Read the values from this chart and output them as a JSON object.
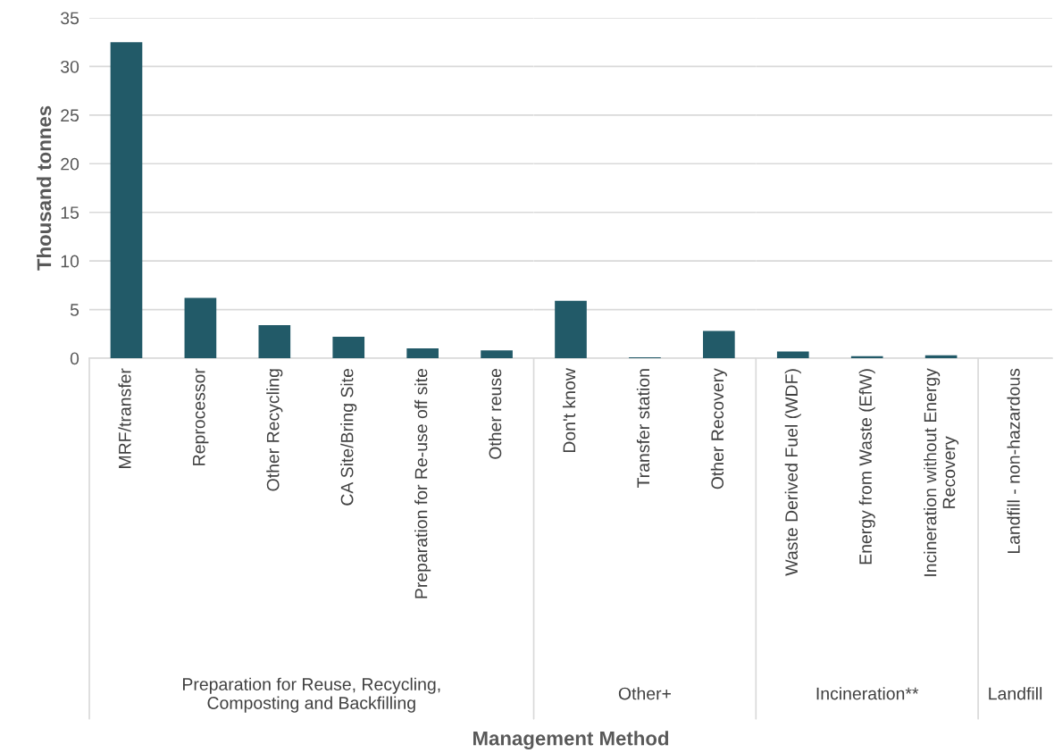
{
  "chart_data": [
    {
      "type": "bar",
      "xlabel": "Preparation for Reuse, Recycling,\nComposting and Backfilling",
      "ylabel": "Thousand tonnes",
      "categories": [
        "MRF/transfer",
        "Reprocessor",
        "Other Recycling",
        "CA Site/Bring Site",
        "Preparation for Re-use off site",
        "Other reuse"
      ],
      "values": [
        32.5,
        6.2,
        3.4,
        2.2,
        1.0,
        0.8
      ],
      "color": "#225a68",
      "ylim": [
        0,
        35
      ],
      "yticks": [
        0,
        5,
        10,
        15,
        20,
        25,
        30,
        35
      ],
      "grid": "y",
      "annotations": [
        "Management Method"
      ]
    },
    {
      "type": "bar",
      "xlabel": "Other+",
      "categories": [
        "Don't know",
        "Transfer station",
        "Other Recovery"
      ],
      "values": [
        5.9,
        0.1,
        2.8
      ],
      "color": "#225a68",
      "ylim": [
        0,
        35
      ],
      "yticks": [
        0,
        5,
        10,
        15,
        20,
        25,
        30,
        35
      ],
      "grid": "y",
      "tick_labels": "x"
    },
    {
      "type": "bar",
      "xlabel": "Incineration**",
      "categories": [
        "Waste Derived Fuel (WDF)",
        "Energy from Waste (EfW)",
        "Incineration without Energy\nRecovery"
      ],
      "values": [
        0.7,
        0.2,
        0.3
      ],
      "color": "#225a68",
      "ylim": [
        0,
        35
      ],
      "yticks": [
        0,
        5,
        10,
        15,
        20,
        25,
        30,
        35
      ],
      "grid": "y",
      "tick_labels": "x"
    },
    {
      "type": "bar",
      "xlabel": "Landfill",
      "categories": [
        "Landfill - non-hazardous"
      ],
      "values": [
        0
      ],
      "color": "#225a68",
      "ylim": [
        0,
        35
      ],
      "yticks": [
        0,
        5,
        10,
        15,
        20,
        25,
        30,
        35
      ],
      "grid": "y",
      "tick_labels": "x"
    }
  ]
}
